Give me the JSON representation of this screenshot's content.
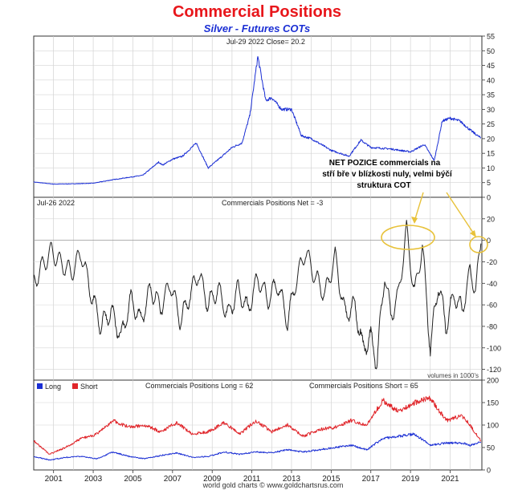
{
  "header": {
    "title": "Commercial Positions",
    "subtitle": "Silver - Futures COTs"
  },
  "footer": {
    "credit": "world gold charts © www.goldchartsrus.com"
  },
  "annotations": {
    "callout": [
      "NET POZICE  commercials na",
      "stří bře v blízkosti nuly, velmi býčí",
      "struktura COT"
    ],
    "circle_color": "#e8c23a"
  },
  "colors": {
    "price": "#1b2fd4",
    "net": "#222222",
    "long": "#1b2fd4",
    "short": "#e0252a",
    "title": "#e8161b"
  },
  "chart_data": [
    {
      "type": "line",
      "name": "price",
      "header_left": "Jul-29  2022   Close= 20.2",
      "ylim": [
        0,
        55
      ],
      "yticks": [
        0,
        5,
        10,
        15,
        20,
        25,
        30,
        35,
        40,
        45,
        50,
        55
      ],
      "x": [
        2000.0,
        2001.0,
        2002.0,
        2003.0,
        2004.0,
        2004.5,
        2005.5,
        2006.3,
        2006.5,
        2007.0,
        2007.5,
        2008.2,
        2008.8,
        2009.5,
        2010.0,
        2010.5,
        2010.9,
        2011.3,
        2011.7,
        2012.0,
        2012.5,
        2013.0,
        2013.5,
        2014.0,
        2015.0,
        2015.9,
        2016.5,
        2017.0,
        2018.0,
        2019.0,
        2019.7,
        2020.2,
        2020.6,
        2021.0,
        2021.5,
        2022.0,
        2022.55
      ],
      "series": [
        {
          "name": "Silver",
          "values": [
            5.2,
            4.5,
            4.6,
            4.8,
            6.0,
            6.5,
            7.5,
            12.0,
            11.0,
            13.0,
            14.0,
            18.5,
            10.0,
            14.0,
            17.0,
            18.5,
            28.0,
            48.0,
            33.0,
            34.0,
            30.0,
            30.0,
            21.0,
            20.0,
            16.0,
            14.0,
            19.5,
            17.0,
            16.5,
            15.5,
            18.0,
            12.5,
            26.0,
            27.0,
            26.0,
            23.0,
            20.2
          ]
        }
      ]
    },
    {
      "type": "line",
      "name": "net",
      "header_left": "Jul-26  2022",
      "header_center": "Commercials Positions Net = -3",
      "footer_note": "volumes in 1000's",
      "ylim": [
        -130,
        40
      ],
      "yticks": [
        20,
        0,
        -20,
        -40,
        -60,
        -80,
        -100,
        -120
      ],
      "ytick_labels": [
        "20",
        "0",
        "-20",
        "-40",
        "-60",
        "-80",
        "-100",
        "-120"
      ],
      "x": [
        2000.0,
        2000.4,
        2000.9,
        2001.3,
        2001.9,
        2002.4,
        2002.9,
        2003.4,
        2003.9,
        2004.4,
        2004.9,
        2005.4,
        2005.9,
        2006.4,
        2006.9,
        2007.4,
        2007.9,
        2008.3,
        2008.8,
        2009.3,
        2009.8,
        2010.3,
        2010.8,
        2011.3,
        2011.8,
        2012.3,
        2012.8,
        2013.2,
        2013.7,
        2014.2,
        2014.7,
        2015.2,
        2015.7,
        2016.2,
        2016.6,
        2017.0,
        2017.3,
        2017.7,
        2018.0,
        2018.4,
        2018.8,
        2019.2,
        2019.6,
        2020.0,
        2020.4,
        2020.8,
        2021.2,
        2021.6,
        2022.0,
        2022.3,
        2022.55
      ],
      "series": [
        {
          "name": "Commercials Net",
          "values": [
            -40,
            -25,
            -10,
            -20,
            -30,
            -12,
            -50,
            -80,
            -65,
            -90,
            -55,
            -75,
            -45,
            -62,
            -40,
            -75,
            -50,
            -30,
            -60,
            -45,
            -70,
            -45,
            -65,
            -35,
            -55,
            -40,
            -75,
            -40,
            -10,
            -35,
            -50,
            -15,
            -70,
            -60,
            -100,
            -90,
            -115,
            -30,
            -70,
            -50,
            10,
            -50,
            -5,
            -100,
            -40,
            -80,
            -50,
            -65,
            -30,
            -45,
            -3
          ]
        }
      ]
    },
    {
      "type": "line",
      "name": "long-short",
      "header_center_left": "Commercials Positions Long = 62",
      "header_center_right": "Commercials Positions Short = 65",
      "legend": [
        "Long",
        "Short"
      ],
      "ylim": [
        0,
        200
      ],
      "yticks": [
        0,
        50,
        100,
        150,
        200
      ],
      "xticks": [
        "2001",
        "2003",
        "2005",
        "2007",
        "2009",
        "2011",
        "2013",
        "2015",
        "2017",
        "2019",
        "2021"
      ],
      "x": [
        2000.0,
        2000.8,
        2001.6,
        2002.4,
        2003.2,
        2004.0,
        2004.8,
        2005.6,
        2006.4,
        2007.2,
        2008.0,
        2008.8,
        2009.6,
        2010.4,
        2011.2,
        2012.0,
        2012.8,
        2013.6,
        2014.4,
        2015.2,
        2016.0,
        2016.8,
        2017.6,
        2018.4,
        2019.2,
        2020.0,
        2020.8,
        2021.6,
        2022.0,
        2022.55
      ],
      "series": [
        {
          "name": "Long",
          "values": [
            30,
            22,
            28,
            30,
            25,
            40,
            30,
            25,
            32,
            38,
            28,
            30,
            40,
            35,
            40,
            38,
            45,
            40,
            45,
            50,
            55,
            45,
            70,
            75,
            80,
            55,
            60,
            60,
            55,
            62
          ]
        },
        {
          "name": "Short",
          "values": [
            65,
            35,
            50,
            70,
            80,
            110,
            95,
            100,
            85,
            105,
            80,
            85,
            105,
            80,
            110,
            85,
            100,
            75,
            90,
            95,
            110,
            100,
            155,
            130,
            150,
            160,
            110,
            120,
            100,
            65
          ]
        }
      ]
    }
  ]
}
